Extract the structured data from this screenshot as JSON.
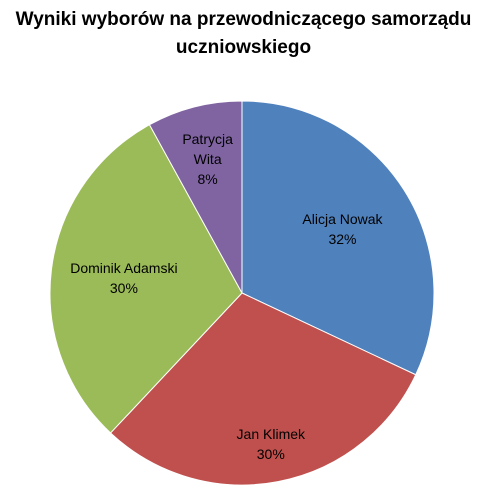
{
  "chart_data": {
    "type": "pie",
    "title": "Wyniki wyborów na przewodniczącego samorządu uczniowskiego",
    "categories": [
      "Alicja Nowak",
      "Jan Klimek",
      "Dominik Adamski",
      "Patrycja Wita"
    ],
    "values": [
      32,
      30,
      30,
      8
    ],
    "value_labels": [
      "32%",
      "30%",
      "30%",
      "8%"
    ],
    "colors": [
      "#4f81bd",
      "#c0504d",
      "#9bbb59",
      "#8064a2"
    ]
  }
}
